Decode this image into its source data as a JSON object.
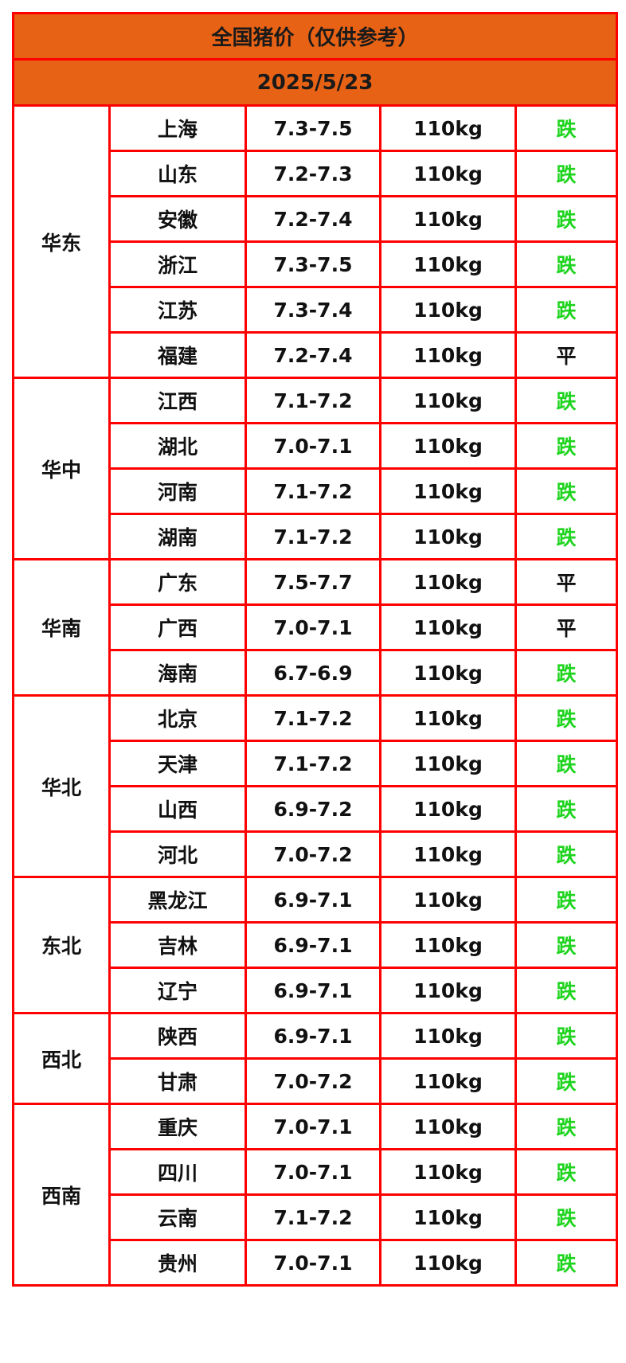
{
  "title": "全国猪价（仅供参考）",
  "date": "2025/5/23",
  "colors": {
    "header_bg": "#e86215",
    "border": "#ff0000",
    "down": "#1ed41e",
    "flat": "#111111"
  },
  "regions": [
    {
      "name": "华东",
      "rows": [
        {
          "province": "上海",
          "price": "7.3-7.5",
          "weight": "110kg",
          "trend": "跌"
        },
        {
          "province": "山东",
          "price": "7.2-7.3",
          "weight": "110kg",
          "trend": "跌"
        },
        {
          "province": "安徽",
          "price": "7.2-7.4",
          "weight": "110kg",
          "trend": "跌"
        },
        {
          "province": "浙江",
          "price": "7.3-7.5",
          "weight": "110kg",
          "trend": "跌"
        },
        {
          "province": "江苏",
          "price": "7.3-7.4",
          "weight": "110kg",
          "trend": "跌"
        },
        {
          "province": "福建",
          "price": "7.2-7.4",
          "weight": "110kg",
          "trend": "平"
        }
      ]
    },
    {
      "name": "华中",
      "rows": [
        {
          "province": "江西",
          "price": "7.1-7.2",
          "weight": "110kg",
          "trend": "跌"
        },
        {
          "province": "湖北",
          "price": "7.0-7.1",
          "weight": "110kg",
          "trend": "跌"
        },
        {
          "province": "河南",
          "price": "7.1-7.2",
          "weight": "110kg",
          "trend": "跌"
        },
        {
          "province": "湖南",
          "price": "7.1-7.2",
          "weight": "110kg",
          "trend": "跌"
        }
      ]
    },
    {
      "name": "华南",
      "rows": [
        {
          "province": "广东",
          "price": "7.5-7.7",
          "weight": "110kg",
          "trend": "平"
        },
        {
          "province": "广西",
          "price": "7.0-7.1",
          "weight": "110kg",
          "trend": "平"
        },
        {
          "province": "海南",
          "price": "6.7-6.9",
          "weight": "110kg",
          "trend": "跌"
        }
      ]
    },
    {
      "name": "华北",
      "rows": [
        {
          "province": "北京",
          "price": "7.1-7.2",
          "weight": "110kg",
          "trend": "跌"
        },
        {
          "province": "天津",
          "price": "7.1-7.2",
          "weight": "110kg",
          "trend": "跌"
        },
        {
          "province": "山西",
          "price": "6.9-7.2",
          "weight": "110kg",
          "trend": "跌"
        },
        {
          "province": "河北",
          "price": "7.0-7.2",
          "weight": "110kg",
          "trend": "跌"
        }
      ]
    },
    {
      "name": "东北",
      "rows": [
        {
          "province": "黑龙江",
          "price": "6.9-7.1",
          "weight": "110kg",
          "trend": "跌"
        },
        {
          "province": "吉林",
          "price": "6.9-7.1",
          "weight": "110kg",
          "trend": "跌"
        },
        {
          "province": "辽宁",
          "price": "6.9-7.1",
          "weight": "110kg",
          "trend": "跌"
        }
      ]
    },
    {
      "name": "西北",
      "rows": [
        {
          "province": "陕西",
          "price": "6.9-7.1",
          "weight": "110kg",
          "trend": "跌"
        },
        {
          "province": "甘肃",
          "price": "7.0-7.2",
          "weight": "110kg",
          "trend": "跌"
        }
      ]
    },
    {
      "name": "西南",
      "rows": [
        {
          "province": "重庆",
          "price": "7.0-7.1",
          "weight": "110kg",
          "trend": "跌"
        },
        {
          "province": "四川",
          "price": "7.0-7.1",
          "weight": "110kg",
          "trend": "跌"
        },
        {
          "province": "云南",
          "price": "7.1-7.2",
          "weight": "110kg",
          "trend": "跌"
        },
        {
          "province": "贵州",
          "price": "7.0-7.1",
          "weight": "110kg",
          "trend": "跌"
        }
      ]
    }
  ]
}
